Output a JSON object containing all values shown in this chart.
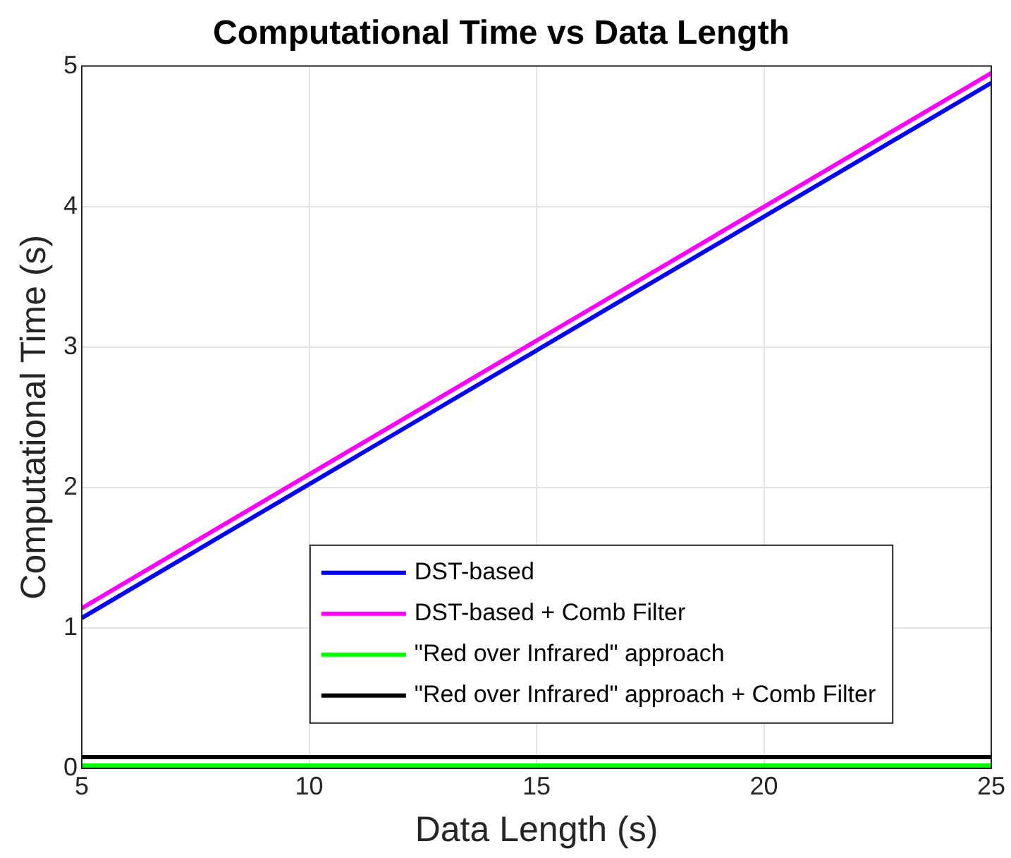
{
  "chart_data": {
    "type": "line",
    "title": "Computational Time vs Data Length",
    "xlabel": "Data Length (s)",
    "ylabel": "Computational Time (s)",
    "x": [
      5,
      25
    ],
    "series": [
      {
        "name": "DST-based",
        "color": "#0000ff",
        "values": [
          1.07,
          4.88
        ]
      },
      {
        "name": "DST-based + Comb Filter",
        "color": "#ff00ff",
        "values": [
          1.14,
          4.95
        ]
      },
      {
        "name": "\"Red over Infrared\" approach",
        "color": "#00ff00",
        "values": [
          0.02,
          0.02
        ]
      },
      {
        "name": "\"Red over Infrared\" approach + Comb Filter",
        "color": "#000000",
        "values": [
          0.08,
          0.08
        ]
      }
    ],
    "xlim": [
      5,
      25
    ],
    "xticks": [
      5,
      10,
      15,
      20,
      25
    ],
    "ylim": [
      0,
      5
    ],
    "yticks": [
      0,
      1,
      2,
      3,
      4,
      5
    ],
    "grid": true,
    "legend": "bottom",
    "marker": "none",
    "line_style": "solid"
  }
}
